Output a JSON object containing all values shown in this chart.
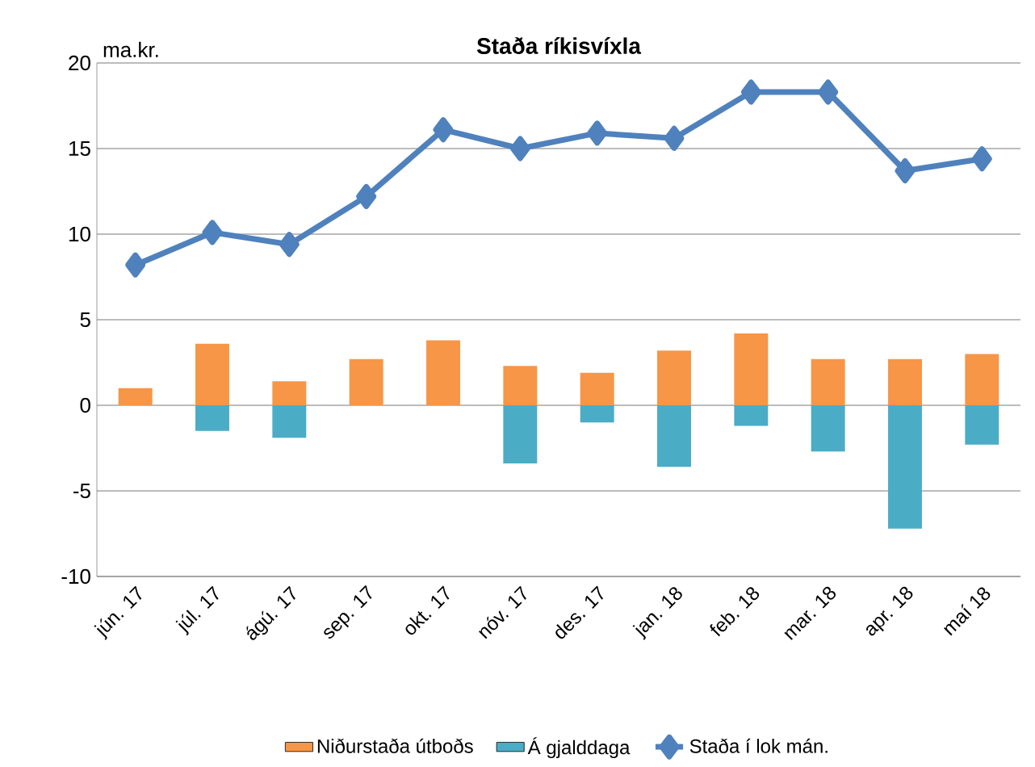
{
  "chart_data": {
    "type": "bar",
    "title": "Staða ríkisvíxla",
    "ylabel": "ma.kr.",
    "stacked": true,
    "categories": [
      "jún. 17",
      "júl. 17",
      "ágú. 17",
      "sep. 17",
      "okt. 17",
      "nóv. 17",
      "des. 17",
      "jan. 18",
      "feb. 18",
      "mar. 18",
      "apr. 18",
      "maí 18"
    ],
    "series": [
      {
        "name": "Niðurstaða útboðs",
        "color": "#f79646",
        "values": [
          1.0,
          3.6,
          1.4,
          2.7,
          3.8,
          2.3,
          1.9,
          3.2,
          4.2,
          2.7,
          2.7,
          3.0
        ]
      },
      {
        "name": "Á gjalddaga",
        "color": "#4bacc6",
        "values": [
          null,
          -1.5,
          -1.9,
          null,
          null,
          -3.4,
          -1.0,
          -3.6,
          -1.2,
          -2.7,
          -7.2,
          -2.3
        ]
      },
      {
        "name": "Staða í lok mán.",
        "type": "line",
        "color": "#4f81bd",
        "marker": "diamond",
        "values": [
          8.2,
          10.1,
          9.4,
          12.2,
          16.1,
          15.0,
          15.9,
          15.6,
          18.3,
          18.3,
          13.7,
          14.4
        ]
      }
    ],
    "ylim": [
      -10,
      20
    ],
    "yticks": [
      -10,
      -5,
      0,
      5,
      10,
      15,
      20
    ],
    "grid": "y",
    "legend": "bottom"
  }
}
